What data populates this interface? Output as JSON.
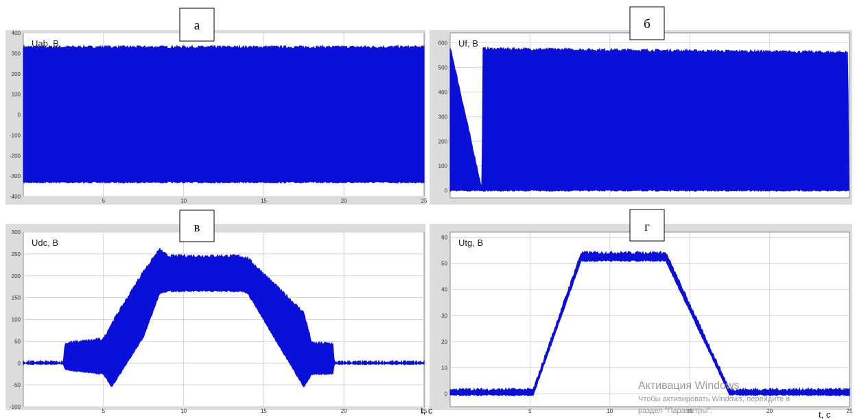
{
  "chart_data": [
    {
      "id": "a",
      "type": "line",
      "panel_label": "а",
      "ylabel": "Uab, В",
      "xlim": [
        0,
        25
      ],
      "ylim": [
        -400,
        400
      ],
      "yticks": [
        400,
        300,
        200,
        100,
        0,
        -100,
        -200,
        -300,
        -400
      ],
      "xticks": [
        5,
        10,
        15,
        20,
        25
      ],
      "series": [
        {
          "color": "#0a10d8",
          "x": [
            0,
            25
          ],
          "upper": [
            330,
            330
          ],
          "lower": [
            -330,
            -330
          ]
        }
      ],
      "grid": true
    },
    {
      "id": "b",
      "type": "line",
      "panel_label": "б",
      "ylabel": "Uf, В",
      "xlim": [
        0,
        25
      ],
      "ylim": [
        -30,
        640
      ],
      "yticks": [
        600,
        500,
        400,
        300,
        200,
        100,
        0
      ],
      "xticks": [],
      "series": [
        {
          "color": "#0a10d8",
          "x": [
            0,
            0.05,
            2.0,
            2.05,
            24.9,
            24.95,
            25
          ],
          "upper": [
            570,
            570,
            0,
            575,
            560,
            0,
            0
          ],
          "lower": [
            0,
            0,
            0,
            0,
            0,
            0,
            0
          ]
        }
      ],
      "grid": true
    },
    {
      "id": "v",
      "type": "line",
      "panel_label": "в",
      "ylabel": "Udc, В",
      "xlabel": "t, с",
      "xlim": [
        0,
        25
      ],
      "ylim": [
        -100,
        300
      ],
      "yticks": [
        300,
        250,
        200,
        150,
        100,
        50,
        0,
        -50,
        -100
      ],
      "xticks": [
        5,
        10,
        15,
        20,
        25
      ],
      "series": [
        {
          "color": "#0a10d8",
          "x": [
            0,
            2.5,
            2.6,
            5.0,
            5.5,
            7.5,
            8.5,
            9.0,
            13.5,
            14.0,
            17.5,
            18.0,
            19.3,
            19.4,
            25
          ],
          "upper": [
            2,
            2,
            45,
            55,
            90,
            210,
            260,
            245,
            245,
            240,
            115,
            45,
            45,
            2,
            2
          ],
          "lower": [
            -2,
            -2,
            -15,
            -25,
            -55,
            60,
            160,
            165,
            165,
            160,
            -55,
            -25,
            -25,
            -2,
            -2
          ]
        }
      ],
      "grid": true
    },
    {
      "id": "g",
      "type": "line",
      "panel_label": "г",
      "ylabel": "Utg, В",
      "xlabel": "t, с",
      "xlim": [
        0,
        25
      ],
      "ylim": [
        -5,
        62
      ],
      "yticks": [
        60,
        50,
        40,
        30,
        20,
        10,
        0
      ],
      "xticks": [
        5,
        10,
        15,
        20,
        25
      ],
      "series": [
        {
          "color": "#0a10d8",
          "x": [
            0,
            5.2,
            8.2,
            13.5,
            17.5,
            25
          ],
          "upper": [
            1.5,
            1.5,
            54,
            54,
            1.5,
            1.5
          ],
          "lower": [
            -0.5,
            -0.5,
            51,
            51,
            -0.5,
            -0.5
          ]
        }
      ],
      "grid": true
    }
  ],
  "watermark": {
    "title": "Активация Windows",
    "line1": "Чтобы активировать Windows, перейдите в",
    "line2": "раздел \"Параметры\"."
  }
}
